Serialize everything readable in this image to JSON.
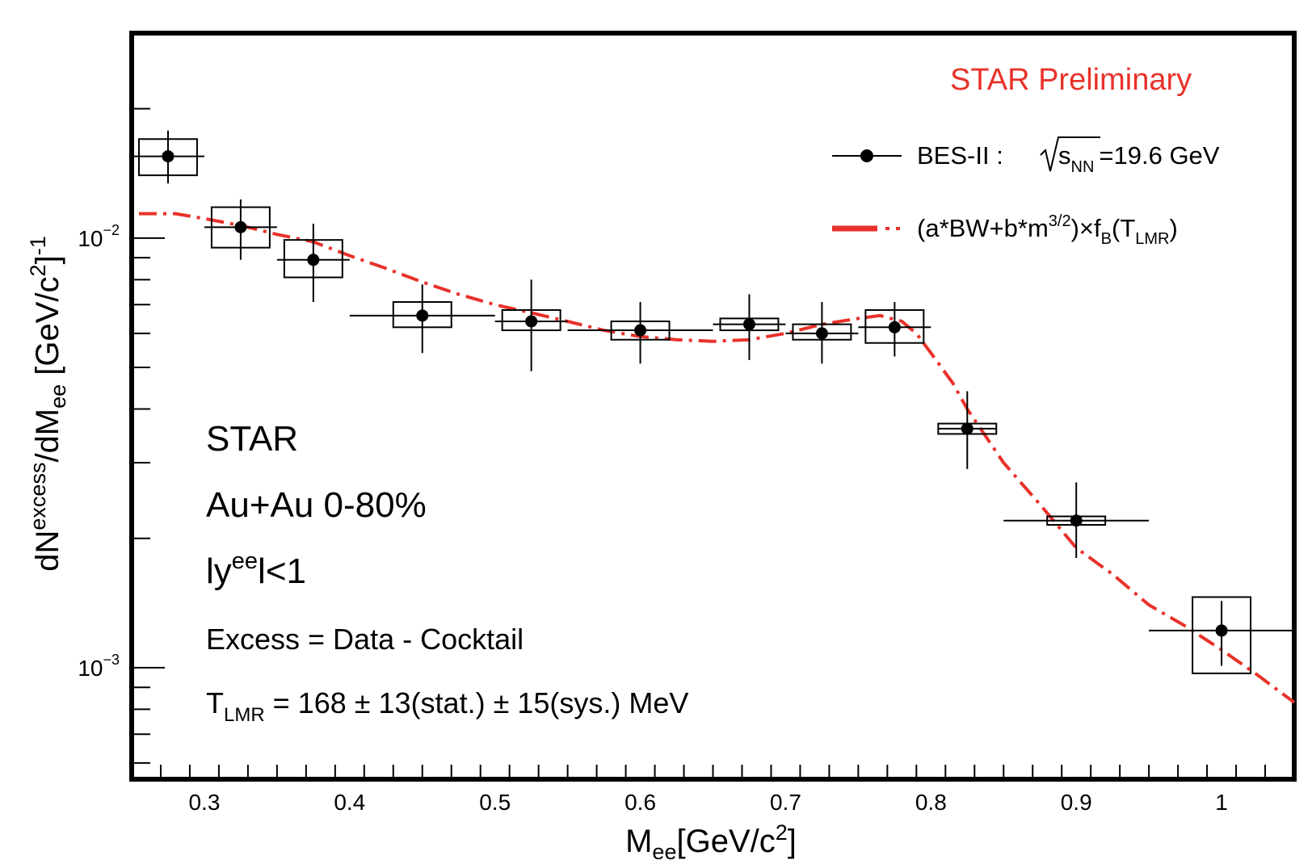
{
  "chart_data": {
    "type": "scatter",
    "xlabel": {
      "main": "M",
      "sub": "ee",
      "rest": "[GeV/c",
      "sup": "2",
      "end": "]"
    },
    "ylabel": {
      "p1": "dN",
      "sup1": "excess",
      "p2": "/dM",
      "sub": "ee",
      "p3": " [GeV/c",
      "sup2": "2",
      "p4": "]",
      "sup3": "-1"
    },
    "xlim": [
      0.25,
      1.05
    ],
    "ylim": [
      0.00055,
      0.03
    ],
    "yscale": "log",
    "x_ticks": [
      {
        "value": 0.3,
        "label": "0.3"
      },
      {
        "value": 0.4,
        "label": "0.4"
      },
      {
        "value": 0.5,
        "label": "0.5"
      },
      {
        "value": 0.6,
        "label": "0.6"
      },
      {
        "value": 0.7,
        "label": "0.7"
      },
      {
        "value": 0.8,
        "label": "0.8"
      },
      {
        "value": 0.9,
        "label": "0.9"
      },
      {
        "value": 1.0,
        "label": "1"
      }
    ],
    "y_ticks": [
      {
        "value": 0.01,
        "base": "10",
        "exp": "−2"
      },
      {
        "value": 0.001,
        "base": "10",
        "exp": "−3"
      }
    ],
    "series": [
      {
        "name": "BES-II :",
        "kind": "points",
        "color": "#000000",
        "points": [
          {
            "x": 0.275,
            "y": 0.0155,
            "xerr": 0.025,
            "ylo": 0.0134,
            "yhi": 0.0178,
            "syslo": 0.014,
            "syshi": 0.017,
            "sysw": 0.02
          },
          {
            "x": 0.325,
            "y": 0.0106,
            "xerr": 0.025,
            "ylo": 0.0089,
            "yhi": 0.0123,
            "syslo": 0.0095,
            "syshi": 0.0118,
            "sysw": 0.02
          },
          {
            "x": 0.375,
            "y": 0.0089,
            "xerr": 0.025,
            "ylo": 0.0071,
            "yhi": 0.0108,
            "syslo": 0.0081,
            "syshi": 0.0099,
            "sysw": 0.02
          },
          {
            "x": 0.45,
            "y": 0.0066,
            "xerr": 0.05,
            "ylo": 0.0054,
            "yhi": 0.0078,
            "syslo": 0.0062,
            "syshi": 0.0071,
            "sysw": 0.02
          },
          {
            "x": 0.525,
            "y": 0.0064,
            "xerr": 0.025,
            "ylo": 0.0049,
            "yhi": 0.008,
            "syslo": 0.0061,
            "syshi": 0.0068,
            "sysw": 0.02
          },
          {
            "x": 0.6,
            "y": 0.0061,
            "xerr": 0.05,
            "ylo": 0.0051,
            "yhi": 0.0071,
            "syslo": 0.0058,
            "syshi": 0.0064,
            "sysw": 0.02
          },
          {
            "x": 0.675,
            "y": 0.0063,
            "xerr": 0.025,
            "ylo": 0.0052,
            "yhi": 0.0074,
            "syslo": 0.0061,
            "syshi": 0.0065,
            "sysw": 0.02
          },
          {
            "x": 0.725,
            "y": 0.006,
            "xerr": 0.025,
            "ylo": 0.0051,
            "yhi": 0.0071,
            "syslo": 0.0058,
            "syshi": 0.0063,
            "sysw": 0.02
          },
          {
            "x": 0.775,
            "y": 0.0062,
            "xerr": 0.025,
            "ylo": 0.0053,
            "yhi": 0.0071,
            "syslo": 0.0057,
            "syshi": 0.0068,
            "sysw": 0.02
          },
          {
            "x": 0.825,
            "y": 0.0036,
            "xerr": 0.02,
            "ylo": 0.0029,
            "yhi": 0.0044,
            "syslo": 0.0035,
            "syshi": 0.0037,
            "sysw": 0.02
          },
          {
            "x": 0.9,
            "y": 0.0022,
            "xerr": 0.05,
            "ylo": 0.0018,
            "yhi": 0.0027,
            "syslo": 0.00215,
            "syshi": 0.00225,
            "sysw": 0.02
          },
          {
            "x": 1.0,
            "y": 0.00122,
            "xerr": 0.05,
            "ylo": 0.00101,
            "yhi": 0.00143,
            "syslo": 0.00097,
            "syshi": 0.00146,
            "sysw": 0.02
          }
        ]
      },
      {
        "name": "(a*BW+b*m^{3/2})×f_B(T_LMR)",
        "kind": "line",
        "color": "#e8322a",
        "x": [
          0.255,
          0.28,
          0.3,
          0.325,
          0.35,
          0.375,
          0.4,
          0.425,
          0.45,
          0.475,
          0.5,
          0.525,
          0.55,
          0.575,
          0.6,
          0.625,
          0.65,
          0.675,
          0.7,
          0.725,
          0.75,
          0.765,
          0.78,
          0.79,
          0.8,
          0.815,
          0.825,
          0.85,
          0.875,
          0.9,
          0.925,
          0.95,
          0.975,
          1.0,
          1.025,
          1.05
        ],
        "y": [
          0.0114,
          0.0114,
          0.0111,
          0.0107,
          0.0102,
          0.0098,
          0.0091,
          0.0085,
          0.0079,
          0.0074,
          0.007,
          0.0067,
          0.0064,
          0.0061,
          0.0059,
          0.0058,
          0.00575,
          0.0058,
          0.006,
          0.0063,
          0.0065,
          0.0066,
          0.0064,
          0.006,
          0.0054,
          0.0046,
          0.004,
          0.003,
          0.0024,
          0.0019,
          0.00165,
          0.0014,
          0.00125,
          0.0011,
          0.00096,
          0.00083
        ]
      }
    ],
    "legend": {
      "position": "top-right",
      "entries": [
        {
          "label": "BES-II :",
          "sqrt_s": "s",
          "sqrt_sub": "NN",
          "value": "=19.6 GeV",
          "symbol": "marker"
        },
        {
          "label_p1": "(a*BW+b*m",
          "label_sup": "3/2",
          "label_p2": ")×f",
          "label_sub1": "B",
          "label_p3": "(T",
          "label_sub2": "LMR",
          "label_p4": ")",
          "symbol": "dash-dot"
        }
      ]
    },
    "annotations": {
      "preliminary": "STAR Preliminary",
      "experiment": "STAR",
      "system": "Au+Au 0-80%",
      "rap_p1": "ly",
      "rap_sup": "ee",
      "rap_p2": "l<1",
      "excess": "Excess = Data - Cocktail",
      "t_p1": "T",
      "t_sub": "LMR",
      "t_p2": " = 168 ± 13(stat.) ± 15(sys.) MeV"
    }
  }
}
